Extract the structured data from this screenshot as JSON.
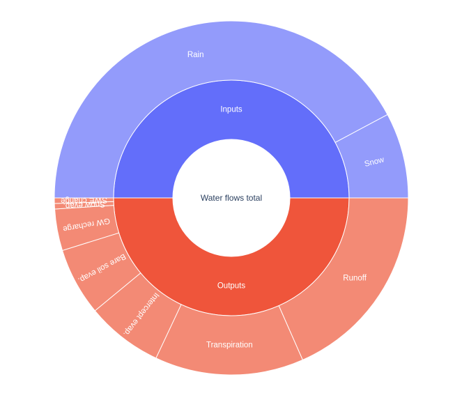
{
  "chart_data": {
    "type": "sunburst",
    "root": "Water flows total",
    "colors": {
      "Inputs": "#636efa",
      "Inputs_children": "#939bfb",
      "Outputs": "#ef553b",
      "Outputs_children": "#f38a75",
      "border": "#ffffff"
    },
    "children": [
      {
        "name": "Inputs",
        "value": 50,
        "children": [
          {
            "name": "Rain",
            "value": 42.2
          },
          {
            "name": "Snow",
            "value": 7.8
          }
        ]
      },
      {
        "name": "Outputs",
        "value": 50,
        "children": [
          {
            "name": "Runoff",
            "value": 18.4
          },
          {
            "name": "Transpiration",
            "value": 13.6
          },
          {
            "name": "Intercept evap.",
            "value": 7.0
          },
          {
            "name": "Bare soil evap.",
            "value": 6.2
          },
          {
            "name": "GW recharge",
            "value": 3.8
          },
          {
            "name": "Snow evap.",
            "value": 0.5
          },
          {
            "name": "SWE change",
            "value": 0.5
          }
        ]
      }
    ]
  }
}
